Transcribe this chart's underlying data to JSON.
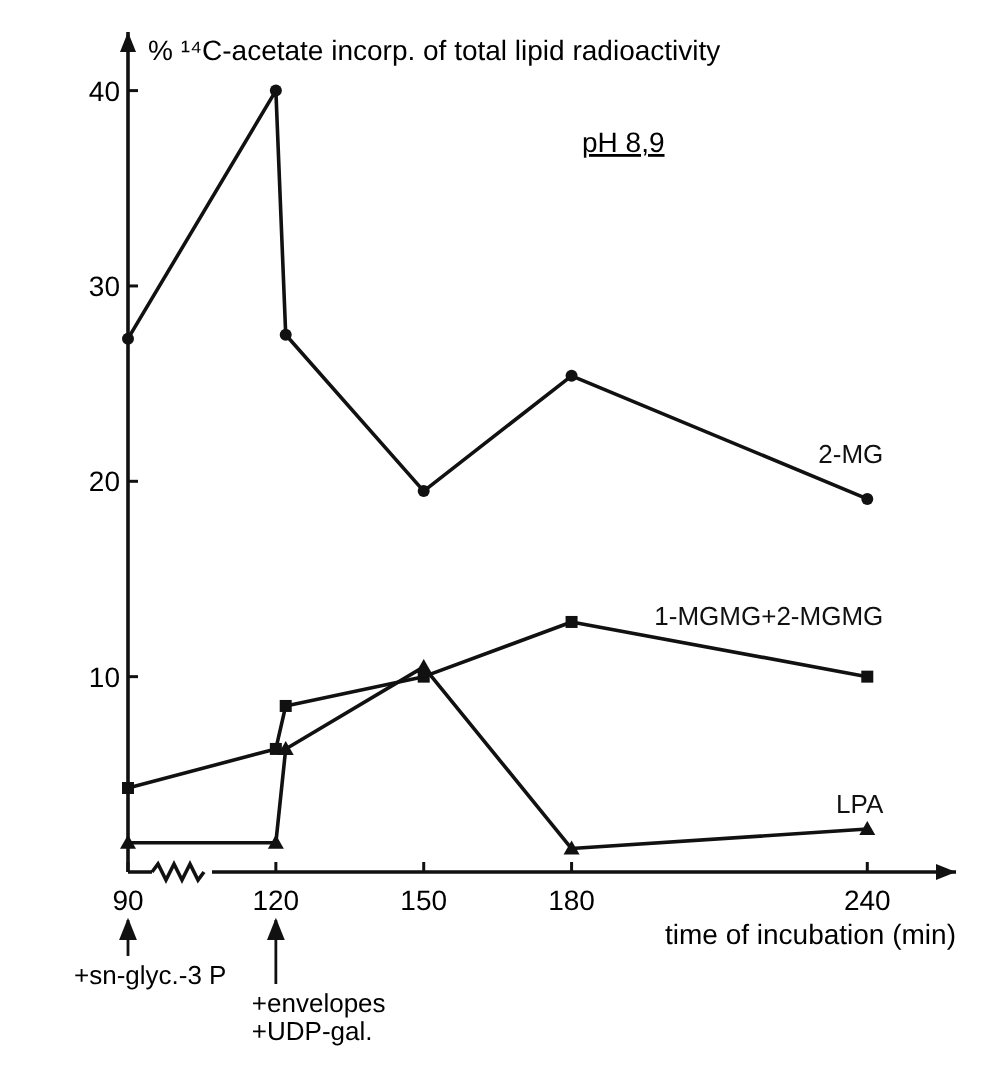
{
  "chart_data": {
    "type": "line",
    "ylabel": "% ¹⁴C-acetate incorp. of total lipid radioactivity",
    "xlabel": "time of incubation (min)",
    "xlim": [
      90,
      258
    ],
    "xticks": [
      90,
      120,
      150,
      180,
      240
    ],
    "ylim": [
      0,
      43
    ],
    "yticks": [
      10,
      20,
      30,
      40
    ],
    "grid": false,
    "legend": false,
    "line_style": "solid",
    "annotations": [
      "pH 8,9",
      "+sn-glyc.-3 P",
      "+envelopes\n+UDP-gal."
    ],
    "series": [
      {
        "name": "2-MG",
        "color": "#111111",
        "marker": "circle",
        "x": [
          90,
          120,
          122,
          150,
          180,
          240
        ],
        "values": [
          27.3,
          40,
          27.5,
          19.5,
          25.4,
          19.1
        ]
      },
      {
        "name": "1-MGMG+2-MGMG",
        "color": "#111111",
        "marker": "square",
        "x": [
          90,
          120,
          122,
          150,
          180,
          240
        ],
        "values": [
          4.3,
          6.3,
          8.5,
          10,
          12.8,
          10
        ]
      },
      {
        "name": "LPA",
        "color": "#111111",
        "marker": "triangle",
        "x": [
          90,
          120,
          122,
          150,
          180,
          240
        ],
        "values": [
          1.5,
          1.5,
          6.3,
          10.5,
          1.2,
          2.2
        ]
      }
    ]
  }
}
